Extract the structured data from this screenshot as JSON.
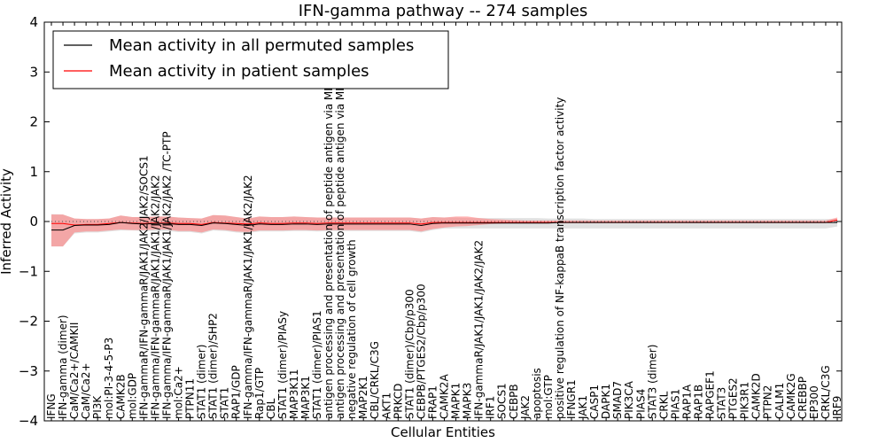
{
  "chart_data": {
    "type": "line",
    "title": "IFN-gamma pathway -- 274 samples",
    "xlabel": "Cellular Entities",
    "ylabel": "Inferred Activity",
    "ylim": [
      -4,
      4
    ],
    "yticks": [
      "−4",
      "−3",
      "−2",
      "−1",
      "0",
      "1",
      "2",
      "3",
      "4"
    ],
    "legend_position": "top-left",
    "grid": false,
    "categories": [
      "IFNG",
      "IFN-gamma (dimer)",
      "CaM/Ca2+/CAMKII",
      "CaM/Ca2+",
      "PI3K",
      "mol:PI-3-4-5-P3",
      "CAMK2B",
      "mol:GDP",
      "IFN-gammaR/IFN-gammaR/JAK1/JAK2/JAK2/SOCS1",
      "IFN-gamma/IFN-gammaR/JAK1/JAK1/JAK2/JAK2",
      "IFN-gamma/IFN-gammaR/JAK1/JAK1/JAK2/JAK2 /TC-PTP",
      "mol:Ca2+",
      "PTPN11",
      "STAT1 (dimer)",
      "STAT1 (dimer)/SHP2",
      "STAT1",
      "RAP1/GDP",
      "IFN-gamma/IFN-gammaR/JAK1/JAK1/JAK2/JAK2",
      "Rap1/GTP",
      "CBL",
      "STAT1 (dimer)/PIASy",
      "MAP3K11",
      "MAP3K1",
      "STAT1 (dimer)/PIAS1",
      "antigen processing and presentation of peptide antigen via MHC class I",
      "antigen processing and presentation of peptide antigen via MHC class II",
      "negative regulation of cell growth",
      "MAP2K1",
      "CBL/CRKL/C3G",
      "AKT1",
      "PRKCD",
      "STAT1 (dimer)/Cbp/p300",
      "CEBPB/PTGES2/Cbp/p300",
      "FRAP1",
      "CAMK2A",
      "MAPK1",
      "MAPK3",
      "IFN-gammaR/JAK1/JAK1/JAK2/JAK2",
      "IRF1",
      "SOCS1",
      "CEBPB",
      "JAK2",
      "apoptosis",
      "mol:GTP",
      "positive regulation of NF-kappaB transcription factor activity",
      "IFNGR1",
      "JAK1",
      "CASP1",
      "DAPK1",
      "SMAD7",
      "PIK3CA",
      "PIAS4",
      "STAT3 (dimer)",
      "CRKL",
      "PIAS1",
      "RAP1A",
      "RAP1B",
      "RAPGEF1",
      "STAT3",
      "PTGES2",
      "PIK3R1",
      "CAMK2D",
      "PTPN2",
      "CALM1",
      "CAMK2G",
      "CREBBP",
      "EP300",
      "CRKL/C3G",
      "IRF9"
    ],
    "series": [
      {
        "name": "Mean activity in all permuted samples",
        "color": "#000000",
        "values": [
          -0.17,
          -0.17,
          -0.08,
          -0.07,
          -0.07,
          -0.06,
          -0.02,
          -0.04,
          -0.05,
          -0.04,
          -0.04,
          -0.06,
          -0.06,
          -0.08,
          -0.03,
          -0.04,
          -0.06,
          -0.08,
          -0.05,
          -0.06,
          -0.06,
          -0.05,
          -0.05,
          -0.06,
          -0.05,
          -0.05,
          -0.05,
          -0.05,
          -0.05,
          -0.05,
          -0.05,
          -0.05,
          -0.08,
          -0.04,
          -0.03,
          -0.03,
          -0.03,
          -0.03,
          -0.03,
          -0.03,
          -0.03,
          -0.03,
          -0.03,
          -0.03,
          -0.02,
          -0.02,
          -0.02,
          -0.02,
          -0.02,
          -0.02,
          -0.02,
          -0.02,
          -0.02,
          -0.02,
          -0.02,
          -0.02,
          -0.02,
          -0.02,
          -0.02,
          -0.02,
          -0.02,
          -0.02,
          -0.02,
          -0.02,
          -0.02,
          -0.02,
          -0.02,
          -0.02,
          -0.02
        ],
        "band_upper": [
          0.15,
          0.14,
          0.06,
          0.05,
          0.05,
          0.06,
          0.12,
          0.09,
          0.09,
          0.1,
          0.1,
          0.08,
          0.07,
          0.06,
          0.13,
          0.12,
          0.09,
          0.06,
          0.1,
          0.09,
          0.09,
          0.1,
          0.09,
          0.08,
          0.08,
          0.08,
          0.08,
          0.08,
          0.08,
          0.08,
          0.08,
          0.08,
          0.06,
          0.09,
          0.08,
          0.08,
          0.07,
          0.07,
          0.07,
          0.07,
          0.07,
          0.07,
          0.07,
          0.06,
          0.06,
          0.06,
          0.06,
          0.05,
          0.05,
          0.05,
          0.05,
          0.05,
          0.05,
          0.05,
          0.05,
          0.05,
          0.05,
          0.05,
          0.05,
          0.05,
          0.05,
          0.05,
          0.05,
          0.05,
          0.05,
          0.05,
          0.05,
          0.05,
          0.05
        ],
        "band_lower": [
          -0.5,
          -0.5,
          -0.24,
          -0.22,
          -0.22,
          -0.2,
          -0.18,
          -0.18,
          -0.19,
          -0.19,
          -0.19,
          -0.21,
          -0.21,
          -0.24,
          -0.18,
          -0.19,
          -0.22,
          -0.23,
          -0.2,
          -0.2,
          -0.2,
          -0.19,
          -0.19,
          -0.2,
          -0.19,
          -0.19,
          -0.19,
          -0.19,
          -0.19,
          -0.19,
          -0.19,
          -0.19,
          -0.22,
          -0.17,
          -0.14,
          -0.14,
          -0.14,
          -0.14,
          -0.14,
          -0.14,
          -0.14,
          -0.14,
          -0.14,
          -0.14,
          -0.14,
          -0.14,
          -0.14,
          -0.14,
          -0.14,
          -0.14,
          -0.14,
          -0.14,
          -0.14,
          -0.14,
          -0.14,
          -0.14,
          -0.14,
          -0.14,
          -0.14,
          -0.14,
          -0.14,
          -0.14,
          -0.14,
          -0.14,
          -0.14,
          -0.14,
          -0.14,
          -0.14,
          -0.1
        ],
        "band_color": "#d4d4d4"
      },
      {
        "name": "Mean activity in patient samples",
        "color": "#ff0000",
        "values": [
          -0.04,
          -0.04,
          -0.07,
          -0.06,
          -0.06,
          -0.04,
          -0.02,
          -0.03,
          -0.04,
          -0.03,
          -0.03,
          -0.04,
          -0.04,
          -0.06,
          -0.02,
          -0.03,
          -0.04,
          -0.05,
          -0.03,
          -0.04,
          -0.04,
          -0.03,
          -0.03,
          -0.04,
          -0.03,
          -0.03,
          -0.03,
          -0.03,
          -0.03,
          -0.03,
          -0.03,
          -0.03,
          -0.05,
          -0.02,
          -0.02,
          -0.02,
          -0.02,
          -0.02,
          -0.02,
          -0.02,
          -0.02,
          -0.02,
          -0.02,
          -0.02,
          -0.02,
          -0.02,
          -0.02,
          -0.02,
          -0.02,
          -0.02,
          -0.02,
          -0.02,
          -0.02,
          -0.02,
          -0.02,
          -0.02,
          -0.02,
          -0.02,
          -0.02,
          -0.02,
          -0.02,
          -0.02,
          -0.02,
          -0.02,
          -0.02,
          -0.02,
          -0.02,
          -0.02,
          0.03
        ],
        "band_upper": [
          0.14,
          0.14,
          0.06,
          0.05,
          0.05,
          0.06,
          0.12,
          0.09,
          0.09,
          0.1,
          0.1,
          0.08,
          0.07,
          0.06,
          0.13,
          0.12,
          0.09,
          0.06,
          0.1,
          0.09,
          0.09,
          0.1,
          0.09,
          0.08,
          0.08,
          0.08,
          0.08,
          0.08,
          0.08,
          0.08,
          0.08,
          0.08,
          0.06,
          0.09,
          0.08,
          0.1,
          0.1,
          0.07,
          0.05,
          0.04,
          0.03,
          0.02,
          0.02,
          0.02,
          0.02,
          0.02,
          0.02,
          0.02,
          0.02,
          0.02,
          0.02,
          0.02,
          0.02,
          0.02,
          0.02,
          0.02,
          0.02,
          0.02,
          0.02,
          0.02,
          0.02,
          0.02,
          0.02,
          0.02,
          0.02,
          0.02,
          0.02,
          0.02,
          0.08
        ],
        "band_lower": [
          -0.5,
          -0.5,
          -0.22,
          -0.2,
          -0.2,
          -0.18,
          -0.16,
          -0.17,
          -0.17,
          -0.16,
          -0.16,
          -0.19,
          -0.19,
          -0.22,
          -0.16,
          -0.17,
          -0.2,
          -0.21,
          -0.18,
          -0.18,
          -0.18,
          -0.17,
          -0.17,
          -0.18,
          -0.17,
          -0.17,
          -0.17,
          -0.17,
          -0.17,
          -0.17,
          -0.17,
          -0.17,
          -0.2,
          -0.15,
          -0.12,
          -0.1,
          -0.09,
          -0.07,
          -0.05,
          -0.04,
          -0.03,
          -0.03,
          -0.03,
          -0.03,
          -0.03,
          -0.03,
          -0.03,
          -0.03,
          -0.03,
          -0.03,
          -0.03,
          -0.03,
          -0.03,
          -0.03,
          -0.03,
          -0.03,
          -0.03,
          -0.03,
          -0.03,
          -0.03,
          -0.03,
          -0.03,
          -0.03,
          -0.03,
          -0.03,
          -0.03,
          -0.03,
          -0.03,
          0.01
        ],
        "band_color": "#ff7f7f"
      }
    ],
    "reference_line": {
      "y": 0,
      "style": "dotted",
      "color": "#555555"
    }
  }
}
